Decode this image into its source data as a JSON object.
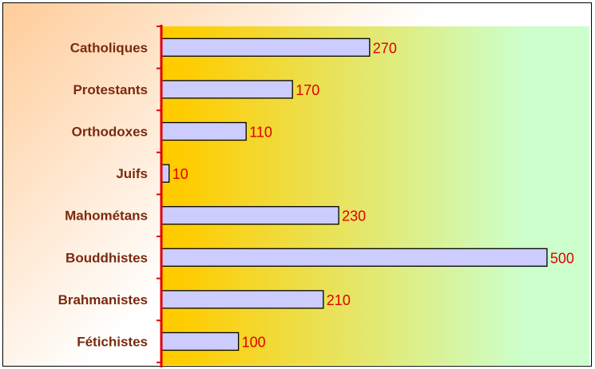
{
  "chart_data": {
    "type": "bar",
    "orientation": "horizontal",
    "title": "",
    "xlabel": "",
    "ylabel": "",
    "categories": [
      "Catholiques",
      "Protestants",
      "Orthodoxes",
      "Juifs",
      "Mahométans",
      "Bouddhistes",
      "Brahmanistes",
      "Fétichistes"
    ],
    "values": [
      270,
      170,
      110,
      10,
      230,
      500,
      210,
      100
    ],
    "xlim": [
      0,
      555
    ],
    "grid": false,
    "legend": "none",
    "colors": {
      "bar_fill": "#ccccff",
      "bar_stroke": "#000000",
      "axis": "#e00000",
      "value_text": "#e00000",
      "category_text": "#7a2a10",
      "plot_gradient": [
        "#ffcc00",
        "#ccffcc"
      ],
      "outer_gradient": [
        "#ffcc99",
        "#ffffff"
      ],
      "frame": "#000000"
    }
  }
}
